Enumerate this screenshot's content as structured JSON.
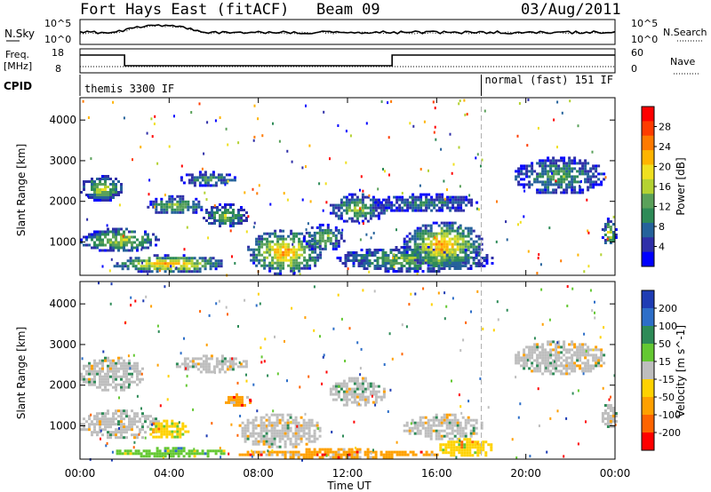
{
  "header": {
    "radar": "Fort Hays East (fitACF)",
    "beam": "Beam 09",
    "date": "03/Aug/2011"
  },
  "noise_panel": {
    "left_label": "N.Sky",
    "right_label": "N.Search",
    "left_ticks": [
      "10^5",
      "10^0"
    ],
    "right_ticks": [
      "10^5",
      "10^0"
    ]
  },
  "freq_panel": {
    "left_label_1": "Freq.",
    "left_label_2": "[MHz]",
    "right_label": "Nave",
    "left_ticks": [
      "18",
      "8"
    ],
    "right_ticks": [
      "60",
      "0"
    ]
  },
  "cpid_panel": {
    "label": "CPID",
    "modes": [
      {
        "name": "themis 3300 IF",
        "start_hour": 0
      },
      {
        "name": "normal (fast) 151 IF",
        "start_hour": 18
      }
    ]
  },
  "chart_data": [
    {
      "type": "heatmap",
      "title": "",
      "xlabel": "Time UT",
      "ylabel": "Slant Range [km]",
      "xlim": [
        0,
        24
      ],
      "ylim": [
        180,
        4550
      ],
      "x_ticks": [
        "00:00",
        "04:00",
        "08:00",
        "12:00",
        "16:00",
        "20:00",
        "00:00"
      ],
      "y_ticks": [
        1000,
        2000,
        3000,
        4000
      ],
      "colorbar": {
        "label": "Power [dB]",
        "ticks": [
          4,
          8,
          12,
          16,
          20,
          24,
          28
        ],
        "colors": [
          "#0000ff",
          "#2f2fa8",
          "#25629b",
          "#2e8b57",
          "#5aa15a",
          "#b4d232",
          "#f0e020",
          "#ffb400",
          "#ff7a00",
          "#ff3c00",
          "#ff0000"
        ]
      },
      "regions": [
        {
          "t0": 0.0,
          "t1": 1.9,
          "r0": 2050,
          "r1": 2650,
          "level": 6
        },
        {
          "t0": 0.0,
          "t1": 3.5,
          "r0": 800,
          "r1": 1350,
          "level": 6
        },
        {
          "t0": 1.5,
          "t1": 6.5,
          "r0": 280,
          "r1": 700,
          "level": 8
        },
        {
          "t0": 3.0,
          "t1": 5.5,
          "r0": 1700,
          "r1": 2150,
          "level": 5
        },
        {
          "t0": 4.5,
          "t1": 6.9,
          "r0": 2400,
          "r1": 2750,
          "level": 4
        },
        {
          "t0": 5.5,
          "t1": 7.5,
          "r0": 1400,
          "r1": 1950,
          "level": 5
        },
        {
          "t0": 7.5,
          "t1": 10.8,
          "r0": 250,
          "r1": 1300,
          "level": 8
        },
        {
          "t0": 10.0,
          "t1": 11.8,
          "r0": 800,
          "r1": 1450,
          "level": 5
        },
        {
          "t0": 11.2,
          "t1": 13.6,
          "r0": 1500,
          "r1": 2200,
          "level": 5
        },
        {
          "t0": 11.5,
          "t1": 18.5,
          "r0": 300,
          "r1": 900,
          "level": 5
        },
        {
          "t0": 14.5,
          "t1": 18.0,
          "r0": 400,
          "r1": 1500,
          "level": 8
        },
        {
          "t0": 13.2,
          "t1": 17.8,
          "r0": 1750,
          "r1": 2200,
          "level": 3
        },
        {
          "t0": 19.5,
          "t1": 23.5,
          "r0": 2200,
          "r1": 3100,
          "level": 4
        },
        {
          "t0": 23.4,
          "t1": 24.0,
          "r0": 900,
          "r1": 1600,
          "level": 6
        }
      ]
    },
    {
      "type": "heatmap",
      "title": "",
      "xlabel": "Time UT",
      "ylabel": "Slant Range [km]",
      "xlim": [
        0,
        24
      ],
      "ylim": [
        180,
        4550
      ],
      "x_ticks": [
        "00:00",
        "04:00",
        "08:00",
        "12:00",
        "16:00",
        "20:00",
        "00:00"
      ],
      "y_ticks": [
        1000,
        2000,
        3000,
        4000
      ],
      "colorbar": {
        "label": "Velocity [m s^-1]",
        "ticks": [
          200,
          100,
          50,
          15,
          -15,
          -50,
          -100,
          -200
        ],
        "colors": [
          "#1e3cb4",
          "#2d6ec8",
          "#2e8b57",
          "#64c832",
          "#bebebe",
          "#ffd200",
          "#ffa000",
          "#ff6400",
          "#ff0000"
        ]
      },
      "regions": [
        {
          "t0": 0.0,
          "t1": 2.8,
          "r0": 1900,
          "r1": 2700,
          "level": 4
        },
        {
          "t0": 0.0,
          "t1": 3.5,
          "r0": 700,
          "r1": 1400,
          "level": 4
        },
        {
          "t0": 1.5,
          "t1": 6.5,
          "r0": 260,
          "r1": 480,
          "level": 3
        },
        {
          "t0": 3.0,
          "t1": 4.8,
          "r0": 700,
          "r1": 1150,
          "level": 5
        },
        {
          "t0": 4.3,
          "t1": 7.5,
          "r0": 2350,
          "r1": 2750,
          "level": 4
        },
        {
          "t0": 6.5,
          "t1": 7.6,
          "r0": 1500,
          "r1": 1800,
          "level": 6
        },
        {
          "t0": 7.0,
          "t1": 10.8,
          "r0": 500,
          "r1": 1300,
          "level": 4
        },
        {
          "t0": 7.0,
          "t1": 16.0,
          "r0": 240,
          "r1": 450,
          "level": 6
        },
        {
          "t0": 11.2,
          "t1": 13.6,
          "r0": 1500,
          "r1": 2200,
          "level": 4
        },
        {
          "t0": 14.5,
          "t1": 18.0,
          "r0": 700,
          "r1": 1300,
          "level": 4
        },
        {
          "t0": 16.0,
          "t1": 18.5,
          "r0": 250,
          "r1": 700,
          "level": 5
        },
        {
          "t0": 19.5,
          "t1": 23.5,
          "r0": 2300,
          "r1": 3100,
          "level": 4
        },
        {
          "t0": 23.4,
          "t1": 24.0,
          "r0": 900,
          "r1": 1600,
          "level": 4
        }
      ]
    }
  ]
}
